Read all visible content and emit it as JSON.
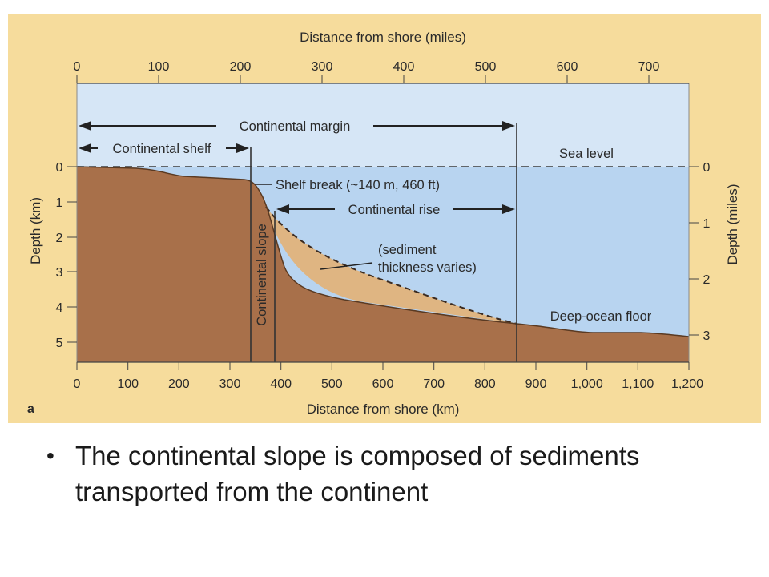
{
  "figure": {
    "top_axis_title": "Distance from shore (miles)",
    "top_ticks": [
      "0",
      "100",
      "200",
      "300",
      "400",
      "500",
      "600",
      "700"
    ],
    "bottom_axis_title": "Distance from shore (km)",
    "bottom_ticks": [
      "0",
      "100",
      "200",
      "300",
      "400",
      "500",
      "600",
      "700",
      "800",
      "900",
      "1,000",
      "1,100",
      "1,200"
    ],
    "left_axis_title": "Depth (km)",
    "left_ticks": [
      "0",
      "1",
      "2",
      "3",
      "4",
      "5"
    ],
    "right_axis_title": "Depth (miles)",
    "right_ticks": [
      "0",
      "1",
      "2",
      "3"
    ],
    "labels": {
      "continental_margin": "Continental margin",
      "continental_shelf": "Continental shelf",
      "sea_level": "Sea level",
      "shelf_break": "Shelf break (~140 m, 460 ft)",
      "continental_rise": "Continental rise",
      "sediment_line1": "(sediment",
      "sediment_line2": "thickness varies)",
      "continental_slope": "Continental slope",
      "deep_ocean_floor": "Deep-ocean floor",
      "panel_letter": "a"
    },
    "colors": {
      "frame": "#f6dc9c",
      "sky": "#d6e6f6",
      "ocean": "#b8d4f0",
      "crust": "#a8704a",
      "sediment": "#dfb582"
    }
  },
  "caption": {
    "bullet": "•",
    "text": "The continental slope is composed of sediments transported from the continent"
  }
}
